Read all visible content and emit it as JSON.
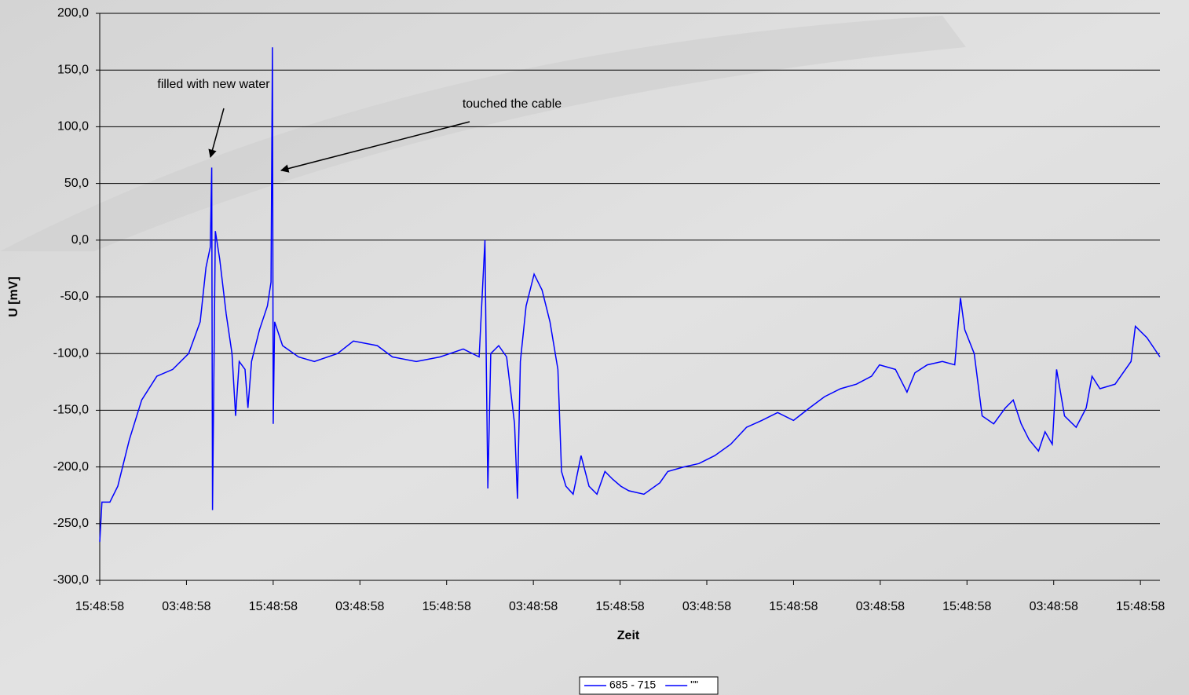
{
  "chart_data": {
    "type": "line",
    "x_label": "Zeit",
    "y_label": "U [mV]",
    "annotations": [
      "filled with new water",
      "touched the cable"
    ],
    "xlim": [
      0,
      146.7
    ],
    "xticks": [
      {
        "value": 0,
        "label": "15:48:58"
      },
      {
        "value": 12,
        "label": "03:48:58"
      },
      {
        "value": 24,
        "label": "15:48:58"
      },
      {
        "value": 36,
        "label": "03:48:58"
      },
      {
        "value": 48,
        "label": "15:48:58"
      },
      {
        "value": 60,
        "label": "03:48:58"
      },
      {
        "value": 72,
        "label": "15:48:58"
      },
      {
        "value": 84,
        "label": "03:48:58"
      },
      {
        "value": 96,
        "label": "15:48:58"
      },
      {
        "value": 108,
        "label": "03:48:58"
      },
      {
        "value": 120,
        "label": "15:48:58"
      },
      {
        "value": 132,
        "label": "03:48:58"
      },
      {
        "value": 144,
        "label": "15:48:58"
      }
    ],
    "ylim": [
      -300,
      200
    ],
    "yticks": [
      {
        "value": -300,
        "label": "-300,0"
      },
      {
        "value": -250,
        "label": "-250,0"
      },
      {
        "value": -200,
        "label": "-200,0"
      },
      {
        "value": -150,
        "label": "-150,0"
      },
      {
        "value": -100,
        "label": "-100,0"
      },
      {
        "value": -50,
        "label": "-50,0"
      },
      {
        "value": 0,
        "label": "0,0"
      },
      {
        "value": 50,
        "label": "50,0"
      },
      {
        "value": 100,
        "label": "100,0"
      },
      {
        "value": 150,
        "label": "150,0"
      },
      {
        "value": 200,
        "label": "200,0"
      }
    ],
    "grid": true,
    "legend": "bottom",
    "series": [
      {
        "name": "685 - 715",
        "color": "#0000ff",
        "x": [
          0,
          0.3,
          1.4,
          2.5,
          4.1,
          5.8,
          7.9,
          10.1,
          12.3,
          13.9,
          14.7,
          15.3,
          15.5,
          15.6,
          16.0,
          16.6,
          17.5,
          18.3,
          18.8,
          19.3,
          20.1,
          20.5,
          21.0,
          22.1,
          23.2,
          23.7,
          23.9,
          24.0,
          24.2,
          25.3,
          27.5,
          29.7,
          32.9,
          35.1,
          38.4,
          40.5,
          43.8,
          47.1,
          50.3,
          52.5,
          53.3,
          53.5,
          53.7,
          54.1,
          55.2,
          56.3,
          57.4,
          57.8,
          58.2,
          59.0,
          60.1,
          61.2,
          62.3,
          63.4,
          63.9,
          64.5,
          65.5,
          66.6,
          67.7,
          68.8,
          69.9,
          71.0,
          72.1,
          73.2,
          75.3,
          77.5,
          78.6,
          80.8,
          82.9,
          85.1,
          87.3,
          89.5,
          91.6,
          93.8,
          96.0,
          98.2,
          100.3,
          102.5,
          104.7,
          106.8,
          107.9,
          110.1,
          111.7,
          112.8,
          114.5,
          116.6,
          118.3,
          119.1,
          119.7,
          121.0,
          122.1,
          123.7,
          125.3,
          126.4,
          127.5,
          128.6,
          129.9,
          130.8,
          131.8,
          132.4,
          133.5,
          135.1,
          136.5,
          137.3,
          138.4,
          140.5,
          142.7,
          143.3,
          144.9,
          146.7
        ],
        "values": [
          -266,
          -231,
          -231,
          -217,
          -176,
          -141,
          -120,
          -114,
          -100,
          -72,
          -24,
          -6,
          64,
          -238,
          8,
          -17,
          -65,
          -100,
          -155,
          -107,
          -114,
          -148,
          -107,
          -79,
          -58,
          -37,
          170,
          -162,
          -72,
          -93,
          -103,
          -107,
          -100,
          -89,
          -93,
          -103,
          -107,
          -103,
          -96,
          -103,
          0,
          -114,
          -219,
          -100,
          -93,
          -103,
          -162,
          -228,
          -107,
          -58,
          -30,
          -44,
          -72,
          -114,
          -204,
          -217,
          -224,
          -190,
          -217,
          -224,
          -204,
          -211,
          -217,
          -221,
          -224,
          -214,
          -204,
          -200,
          -197,
          -190,
          -180,
          -165,
          -159,
          -152,
          -159,
          -148,
          -138,
          -131,
          -127,
          -120,
          -110,
          -114,
          -134,
          -117,
          -110,
          -107,
          -110,
          -51,
          -79,
          -100,
          -155,
          -162,
          -148,
          -141,
          -162,
          -176,
          -186,
          -169,
          -180,
          -114,
          -155,
          -165,
          -148,
          -120,
          -131,
          -127,
          -107,
          -76,
          -86,
          -103
        ]
      },
      {
        "name": "\"\"",
        "color": "#0000ff"
      }
    ]
  }
}
